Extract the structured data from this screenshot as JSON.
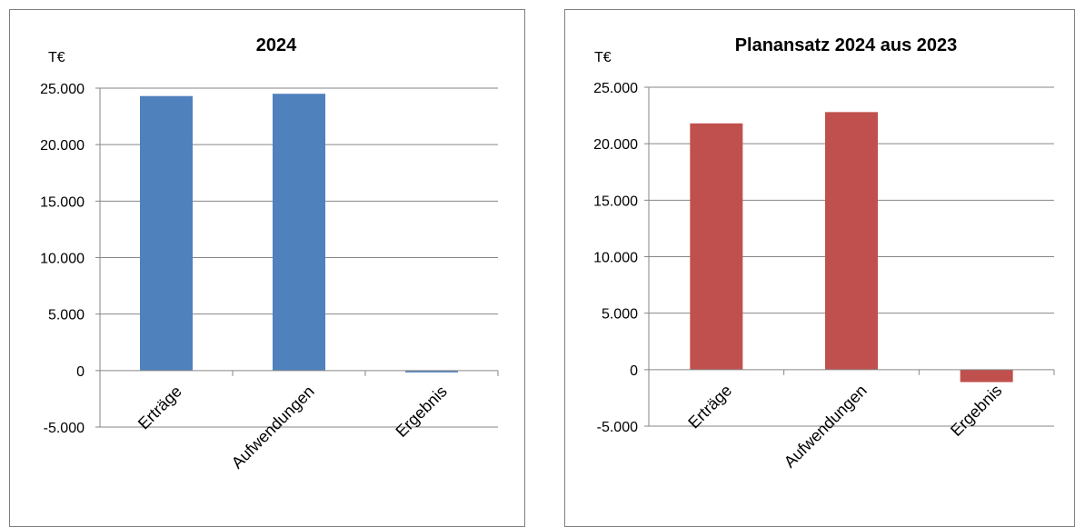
{
  "chart_data": [
    {
      "type": "bar",
      "title": "2024",
      "ylabel": "T€",
      "xlabel": "",
      "categories": [
        "Erträge",
        "Aufwendungen",
        "Ergebnis"
      ],
      "series": [
        {
          "values": [
            24300,
            24500,
            -150
          ],
          "color": "#4f81bd"
        }
      ],
      "ylim": [
        -5000,
        25000
      ],
      "yticks": [
        "25.000",
        "20.000",
        "15.000",
        "10.000",
        "5.000",
        "0",
        "-5.000"
      ],
      "ytick_values": [
        25000,
        20000,
        15000,
        10000,
        5000,
        0,
        -5000
      ],
      "grid": true,
      "legend": "none"
    },
    {
      "type": "bar",
      "title": "Planansatz 2024 aus 2023",
      "ylabel": "T€",
      "xlabel": "",
      "categories": [
        "Erträge",
        "Aufwendungen",
        "Ergebnis"
      ],
      "series": [
        {
          "values": [
            21800,
            22800,
            -1100
          ],
          "color": "#c0504d"
        }
      ],
      "ylim": [
        -5000,
        25000
      ],
      "yticks": [
        "25.000",
        "20.000",
        "15.000",
        "10.000",
        "5.000",
        "0",
        "-5.000"
      ],
      "ytick_values": [
        25000,
        20000,
        15000,
        10000,
        5000,
        0,
        -5000
      ],
      "grid": true,
      "legend": "none"
    }
  ]
}
